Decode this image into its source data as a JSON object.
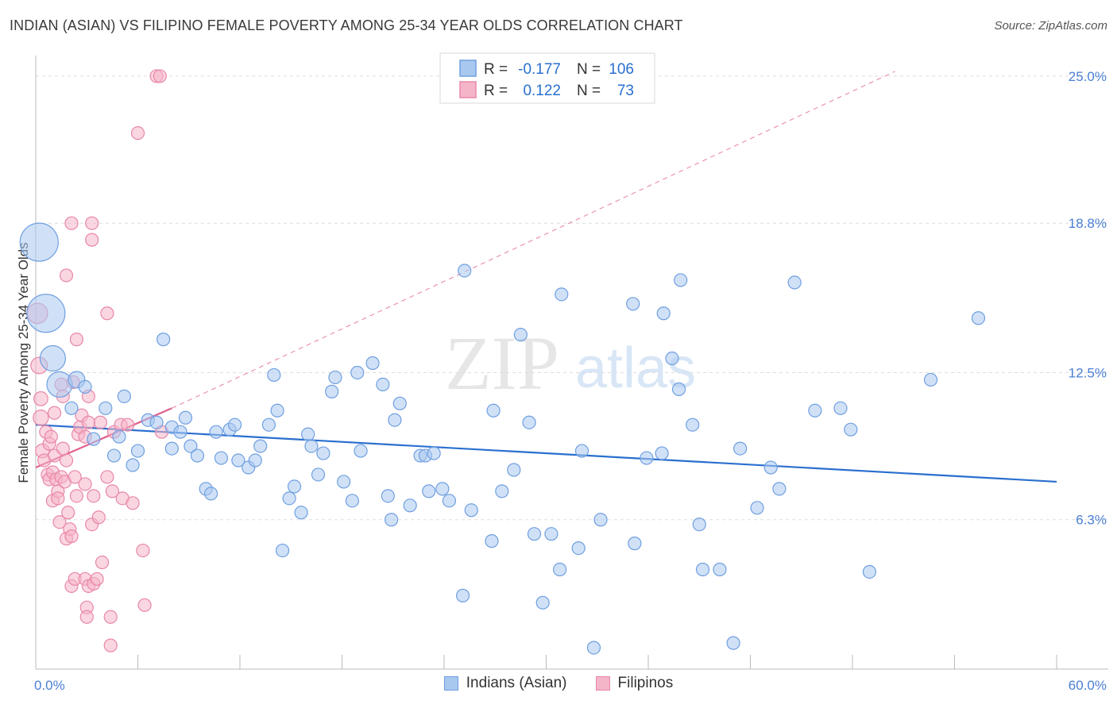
{
  "header": {
    "title": "INDIAN (ASIAN) VS FILIPINO FEMALE POVERTY AMONG 25-34 YEAR OLDS CORRELATION CHART",
    "source": "Source: ZipAtlas.com"
  },
  "watermark": {
    "zip": "ZIP",
    "atlas": "atlas"
  },
  "colors": {
    "blue_fill": "#a9c8f0",
    "blue_stroke": "#6f9fe0",
    "blue_line": "#2a6fcf",
    "pink_fill": "#f5b5c9",
    "pink_stroke": "#e887a8",
    "pink_line": "#e0608c",
    "axis_text": "#4a7fd4",
    "grid": "#dddddd"
  },
  "stats_legend": {
    "rows": [
      {
        "r_label": "R =",
        "r_value": "-0.177",
        "n_label": "N =",
        "n_value": "106"
      },
      {
        "r_label": "R =",
        "r_value": "0.122",
        "n_label": "N =",
        "n_value": "73"
      }
    ]
  },
  "chart_data": {
    "type": "scatter",
    "title": "INDIAN (ASIAN) VS FILIPINO FEMALE POVERTY AMONG 25-34 YEAR OLDS CORRELATION CHART",
    "xlabel": "",
    "ylabel": "Female Poverty Among 25-34 Year Olds",
    "xlim": [
      0,
      60
    ],
    "ylim": [
      0,
      25.6
    ],
    "x_tick_labels": [
      "0.0%",
      "60.0%"
    ],
    "y_ticks": [
      6.3,
      12.5,
      18.8,
      25.0
    ],
    "y_tick_labels": [
      "6.3%",
      "12.5%",
      "18.8%",
      "25.0%"
    ],
    "x_minor_ticks": [
      0,
      6,
      12,
      18,
      24,
      30,
      36,
      42,
      48,
      54,
      60
    ],
    "grid": true,
    "legend_position": "bottom",
    "series": [
      {
        "name": "Indians (Asian)",
        "color": "blue",
        "R": -0.177,
        "N": 106,
        "trend": {
          "x0": 0,
          "y0": 10.3,
          "x1": 60,
          "y1": 7.9
        },
        "points": [
          [
            0.2,
            18.0,
            3
          ],
          [
            0.6,
            15.0,
            3
          ],
          [
            1.0,
            13.1,
            2
          ],
          [
            1.4,
            12.0,
            2
          ],
          [
            2.4,
            12.2,
            1.3
          ],
          [
            2.9,
            11.9,
            1
          ],
          [
            2.1,
            11.0,
            1
          ],
          [
            3.4,
            9.7,
            1
          ],
          [
            4.1,
            11.0,
            1
          ],
          [
            4.9,
            9.8,
            1
          ],
          [
            5.2,
            11.5,
            1
          ],
          [
            4.6,
            9.0,
            1
          ],
          [
            5.7,
            8.6,
            1
          ],
          [
            6.0,
            9.2,
            1
          ],
          [
            6.6,
            10.5,
            1
          ],
          [
            7.1,
            10.4,
            1
          ],
          [
            7.5,
            13.9,
            1
          ],
          [
            8.0,
            10.2,
            1
          ],
          [
            8.0,
            9.3,
            1
          ],
          [
            8.5,
            10.0,
            1
          ],
          [
            8.8,
            10.6,
            1
          ],
          [
            9.1,
            9.4,
            1
          ],
          [
            9.5,
            9.0,
            1
          ],
          [
            10.0,
            7.6,
            1
          ],
          [
            10.3,
            7.4,
            1
          ],
          [
            10.6,
            10.0,
            1
          ],
          [
            10.9,
            8.9,
            1
          ],
          [
            11.4,
            10.1,
            1
          ],
          [
            11.7,
            10.3,
            1
          ],
          [
            11.9,
            8.8,
            1
          ],
          [
            12.5,
            8.5,
            1
          ],
          [
            12.9,
            8.8,
            1
          ],
          [
            13.2,
            9.4,
            1
          ],
          [
            13.7,
            10.3,
            1
          ],
          [
            14.0,
            12.4,
            1
          ],
          [
            14.2,
            10.9,
            1
          ],
          [
            14.5,
            5.0,
            1
          ],
          [
            14.9,
            7.2,
            1
          ],
          [
            15.2,
            7.7,
            1
          ],
          [
            15.6,
            6.6,
            1
          ],
          [
            16.0,
            9.9,
            1
          ],
          [
            16.2,
            9.4,
            1
          ],
          [
            16.6,
            8.2,
            1
          ],
          [
            16.9,
            9.1,
            1
          ],
          [
            17.4,
            11.7,
            1
          ],
          [
            17.6,
            12.3,
            1
          ],
          [
            18.1,
            7.9,
            1
          ],
          [
            18.6,
            7.1,
            1
          ],
          [
            18.9,
            12.5,
            1
          ],
          [
            19.1,
            9.2,
            1
          ],
          [
            19.8,
            12.9,
            1
          ],
          [
            20.4,
            12.0,
            1
          ],
          [
            20.7,
            7.3,
            1
          ],
          [
            20.9,
            6.3,
            1
          ],
          [
            21.1,
            10.5,
            1
          ],
          [
            21.4,
            11.2,
            1
          ],
          [
            22.0,
            6.9,
            1
          ],
          [
            22.6,
            9.0,
            1
          ],
          [
            22.9,
            9.0,
            1
          ],
          [
            23.1,
            7.5,
            1
          ],
          [
            23.4,
            9.1,
            1
          ],
          [
            23.9,
            7.6,
            1
          ],
          [
            24.3,
            7.1,
            1
          ],
          [
            25.1,
            3.1,
            1
          ],
          [
            25.2,
            16.8,
            1
          ],
          [
            25.6,
            6.7,
            1
          ],
          [
            26.8,
            5.4,
            1
          ],
          [
            26.9,
            10.9,
            1
          ],
          [
            27.4,
            7.5,
            1
          ],
          [
            28.1,
            8.4,
            1
          ],
          [
            28.5,
            14.1,
            1
          ],
          [
            29.0,
            10.4,
            1
          ],
          [
            29.3,
            5.7,
            1
          ],
          [
            29.8,
            2.8,
            1
          ],
          [
            30.3,
            5.7,
            1
          ],
          [
            30.8,
            4.2,
            1
          ],
          [
            30.9,
            15.8,
            1
          ],
          [
            31.9,
            5.1,
            1
          ],
          [
            32.1,
            9.2,
            1
          ],
          [
            32.8,
            0.9,
            1
          ],
          [
            33.2,
            6.3,
            1
          ],
          [
            35.1,
            15.4,
            1
          ],
          [
            35.2,
            5.3,
            1
          ],
          [
            35.9,
            8.9,
            1
          ],
          [
            36.8,
            9.1,
            1
          ],
          [
            36.9,
            15.0,
            1
          ],
          [
            37.4,
            13.1,
            1
          ],
          [
            37.8,
            11.8,
            1
          ],
          [
            37.9,
            16.4,
            1
          ],
          [
            38.6,
            10.3,
            1
          ],
          [
            39.0,
            6.1,
            1
          ],
          [
            39.2,
            4.2,
            1
          ],
          [
            40.2,
            4.2,
            1
          ],
          [
            41.0,
            1.1,
            1
          ],
          [
            41.4,
            9.3,
            1
          ],
          [
            42.4,
            6.8,
            1
          ],
          [
            43.2,
            8.5,
            1
          ],
          [
            43.7,
            7.6,
            1
          ],
          [
            44.6,
            16.3,
            1
          ],
          [
            45.8,
            10.9,
            1
          ],
          [
            47.3,
            11.0,
            1
          ],
          [
            47.9,
            10.1,
            1
          ],
          [
            49.0,
            4.1,
            1
          ],
          [
            52.6,
            12.2,
            1
          ],
          [
            55.4,
            14.8,
            1
          ]
        ]
      },
      {
        "name": "Filipinos",
        "color": "pink",
        "R": 0.122,
        "N": 73,
        "trend": {
          "x0": 0,
          "y0": 8.5,
          "x1": 8,
          "y1": 11.0
        },
        "trend_extended": {
          "x0": 8,
          "y0": 11.0,
          "x1": 50.5,
          "y1": 25.2
        },
        "points": [
          [
            0.1,
            15.0,
            1.6
          ],
          [
            0.2,
            12.8,
            1.3
          ],
          [
            0.3,
            10.6,
            1.2
          ],
          [
            0.3,
            11.4,
            1.1
          ],
          [
            0.4,
            9.2,
            1.1
          ],
          [
            0.5,
            8.8,
            1
          ],
          [
            0.6,
            10.0,
            1
          ],
          [
            0.7,
            8.2,
            1
          ],
          [
            0.8,
            9.5,
            1
          ],
          [
            0.8,
            8.0,
            1
          ],
          [
            0.9,
            9.8,
            1
          ],
          [
            1.0,
            7.1,
            1
          ],
          [
            1.0,
            8.3,
            1
          ],
          [
            1.1,
            10.8,
            1
          ],
          [
            1.1,
            9.0,
            1
          ],
          [
            1.2,
            8.0,
            1
          ],
          [
            1.3,
            7.5,
            1
          ],
          [
            1.3,
            7.2,
            1
          ],
          [
            1.4,
            6.2,
            1
          ],
          [
            1.5,
            12.0,
            1
          ],
          [
            1.5,
            8.1,
            1
          ],
          [
            1.6,
            11.5,
            1
          ],
          [
            1.6,
            9.3,
            1
          ],
          [
            1.7,
            7.9,
            1
          ],
          [
            1.8,
            8.8,
            1
          ],
          [
            1.8,
            16.6,
            1
          ],
          [
            1.8,
            5.5,
            1
          ],
          [
            1.9,
            6.6,
            1
          ],
          [
            2.0,
            5.9,
            1
          ],
          [
            2.1,
            5.6,
            1
          ],
          [
            2.1,
            3.5,
            1
          ],
          [
            2.1,
            18.8,
            1
          ],
          [
            2.2,
            12.1,
            1
          ],
          [
            2.3,
            3.8,
            1
          ],
          [
            2.3,
            8.1,
            1
          ],
          [
            2.4,
            7.3,
            1
          ],
          [
            2.4,
            13.9,
            1
          ],
          [
            2.5,
            9.9,
            1
          ],
          [
            2.6,
            10.2,
            1
          ],
          [
            2.7,
            10.7,
            1
          ],
          [
            2.9,
            9.8,
            1
          ],
          [
            2.9,
            7.8,
            1
          ],
          [
            2.9,
            3.8,
            1
          ],
          [
            3.0,
            2.6,
            1
          ],
          [
            3.0,
            2.2,
            1
          ],
          [
            3.1,
            3.5,
            1
          ],
          [
            3.1,
            11.5,
            1
          ],
          [
            3.1,
            10.4,
            1
          ],
          [
            3.3,
            18.8,
            1
          ],
          [
            3.3,
            6.1,
            1
          ],
          [
            3.3,
            18.1,
            1
          ],
          [
            3.4,
            3.6,
            1
          ],
          [
            3.4,
            7.3,
            1
          ],
          [
            3.6,
            3.8,
            1
          ],
          [
            3.7,
            6.4,
            1
          ],
          [
            3.8,
            10.4,
            1
          ],
          [
            3.9,
            4.5,
            1
          ],
          [
            4.2,
            8.1,
            1
          ],
          [
            4.2,
            15.0,
            1
          ],
          [
            4.4,
            2.2,
            1
          ],
          [
            4.4,
            1.0,
            1
          ],
          [
            4.5,
            7.5,
            1
          ],
          [
            4.6,
            10.0,
            1
          ],
          [
            5.0,
            10.3,
            1
          ],
          [
            5.1,
            7.2,
            1
          ],
          [
            5.4,
            10.3,
            1
          ],
          [
            5.7,
            7.0,
            1
          ],
          [
            6.0,
            22.6,
            1
          ],
          [
            6.3,
            5.0,
            1
          ],
          [
            6.4,
            2.7,
            1
          ],
          [
            7.1,
            25.0,
            1
          ],
          [
            7.3,
            25.0,
            1
          ],
          [
            7.4,
            10.0,
            1
          ]
        ]
      }
    ]
  },
  "legend_bottom": [
    {
      "label": "Indians (Asian)"
    },
    {
      "label": "Filipinos"
    }
  ]
}
